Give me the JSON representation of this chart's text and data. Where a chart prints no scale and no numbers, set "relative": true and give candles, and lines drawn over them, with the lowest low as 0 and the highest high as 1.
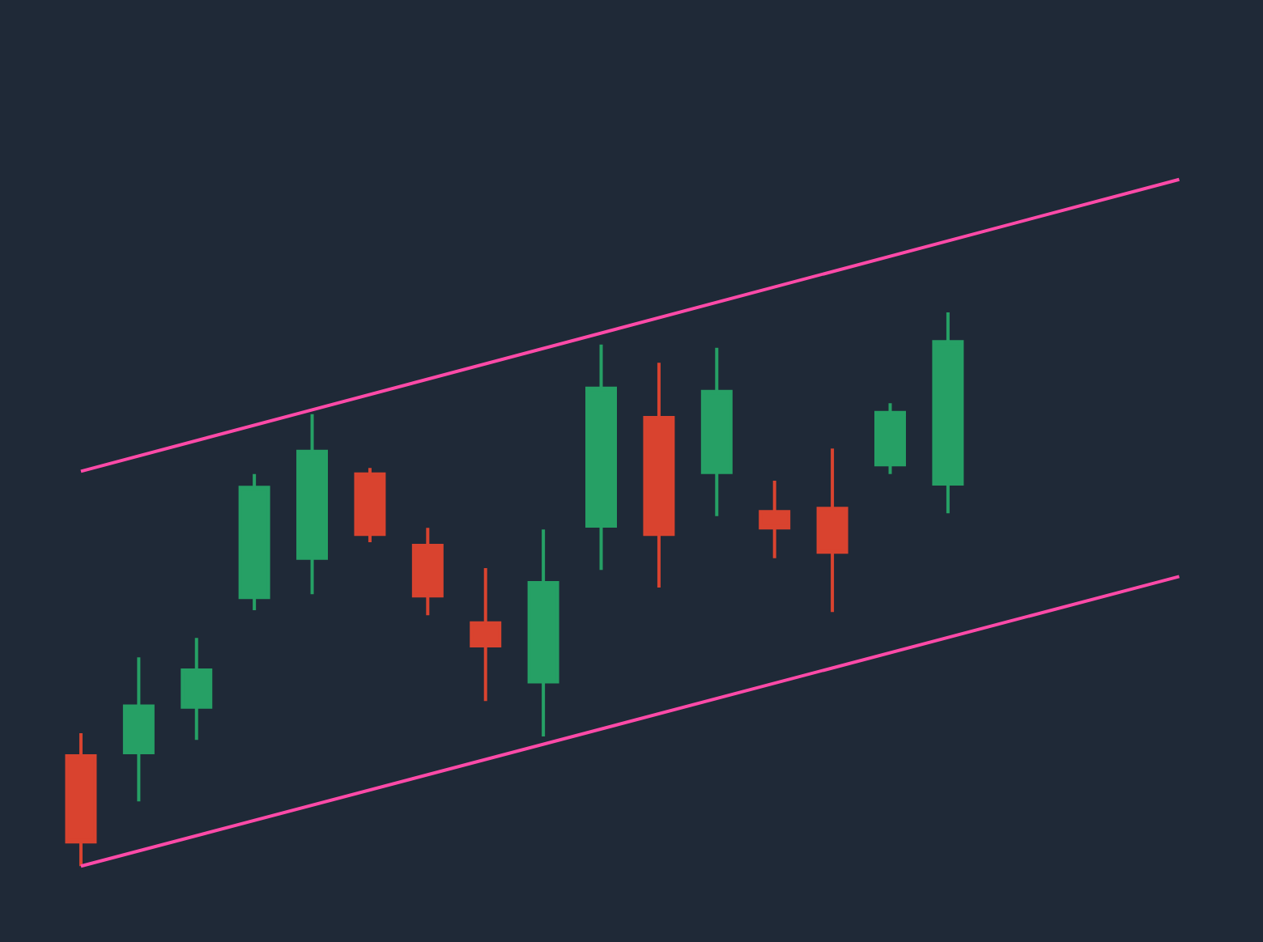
{
  "chart_data": {
    "type": "candlestick",
    "relative": true,
    "categories": [
      null,
      null,
      null,
      null,
      null,
      null,
      null,
      null,
      null,
      null,
      null,
      null,
      null,
      null,
      null,
      null,
      null,
      null,
      null,
      null
    ],
    "ohlc": [
      [
        0.199,
        0.24,
        0.0,
        0.044
      ],
      [
        0.205,
        0.377,
        0.117,
        0.289
      ],
      [
        0.287,
        0.412,
        0.228,
        0.354
      ],
      [
        0.485,
        0.708,
        0.462,
        0.684
      ],
      [
        0.556,
        0.816,
        0.491,
        0.749
      ],
      [
        0.708,
        0.719,
        0.585,
        0.599
      ],
      [
        0.579,
        0.611,
        0.453,
        0.488
      ],
      [
        0.439,
        0.538,
        0.298,
        0.398
      ],
      [
        0.333,
        0.608,
        0.234,
        0.512
      ],
      [
        0.614,
        0.942,
        0.535,
        0.863
      ],
      [
        0.81,
        0.909,
        0.503,
        0.599
      ],
      [
        0.711,
        0.936,
        0.632,
        0.857
      ],
      [
        0.64,
        0.696,
        0.556,
        0.611
      ],
      [
        0.646,
        0.754,
        0.459,
        0.567
      ],
      [
        0.725,
        0.836,
        0.708,
        0.819
      ],
      [
        0.69,
        1.0,
        0.637,
        0.947
      ],
      null,
      null,
      null,
      null
    ],
    "colors": [
      "#d9432f",
      "#26a065",
      "#26a065",
      "#26a065",
      "#26a065",
      "#d9432f",
      "#d9432f",
      "#d9432f",
      "#26a065",
      "#26a065",
      "#d9432f",
      "#26a065",
      "#d9432f",
      "#d9432f",
      "#26a065",
      "#26a065",
      null,
      null,
      null,
      null
    ],
    "series": [
      {
        "type": "line",
        "color": "#ff4aa8",
        "values": [
          0.713,
          null,
          null,
          null,
          null,
          null,
          null,
          null,
          null,
          null,
          null,
          null,
          null,
          null,
          null,
          null,
          null,
          null,
          null,
          1.24
        ]
      },
      {
        "type": "line",
        "color": "#ff4aa8",
        "values": [
          0.0,
          null,
          null,
          null,
          null,
          null,
          null,
          null,
          null,
          null,
          null,
          null,
          null,
          null,
          null,
          null,
          null,
          null,
          null,
          0.523
        ]
      }
    ]
  }
}
